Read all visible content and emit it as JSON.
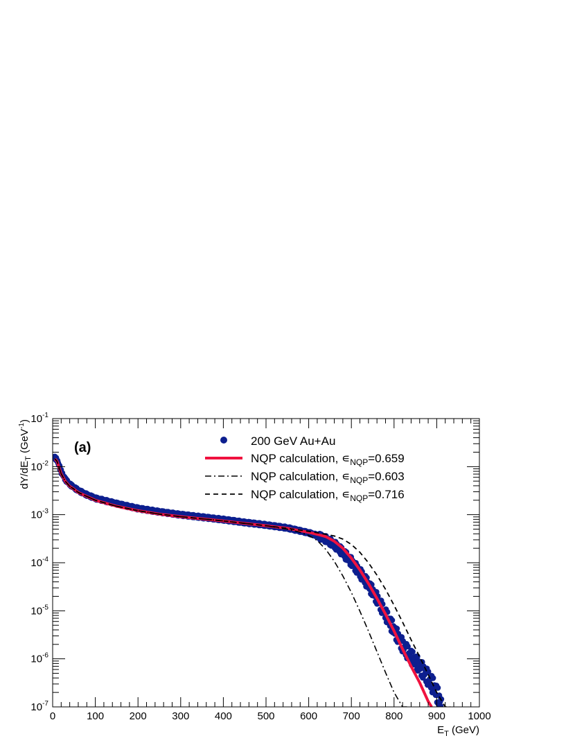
{
  "chart_data": {
    "type": "line",
    "panel_label": "(a)",
    "xlabel_main": "E",
    "xlabel_sub": "T",
    "xlabel_unit": " (GeV)",
    "ylabel_main": "dY/dE",
    "ylabel_sub": "T",
    "ylabel_unit_pre": " (GeV",
    "ylabel_unit_sup": "-1",
    "ylabel_unit_post": ")",
    "xlim": [
      0,
      1000
    ],
    "ylim": [
      1e-07,
      0.1
    ],
    "yscale": "log",
    "x_ticks": [
      0,
      100,
      200,
      300,
      400,
      500,
      600,
      700,
      800,
      900,
      1000
    ],
    "x_tick_labels": [
      "0",
      "100",
      "200",
      "300",
      "400",
      "500",
      "600",
      "700",
      "800",
      "900",
      "1000"
    ],
    "y_tick_exponents": [
      -7,
      -6,
      -5,
      -4,
      -3,
      -2,
      -1
    ],
    "y_tick_base": "10",
    "grid": false,
    "legend_position": "top-right",
    "series": [
      {
        "name": "200 GeV Au+Au",
        "style": "markers",
        "color": "#0d1f8f",
        "x": [
          5,
          10,
          15,
          20,
          30,
          40,
          50,
          60,
          80,
          100,
          150,
          200,
          250,
          300,
          350,
          400,
          450,
          500,
          550,
          600,
          620,
          640,
          660,
          680,
          700,
          720,
          740,
          760,
          780,
          800,
          820,
          840,
          860,
          880,
          895,
          905,
          912
        ],
        "y": [
          0.0155,
          0.0138,
          0.0108,
          0.0078,
          0.0054,
          0.0043,
          0.0037,
          0.0032,
          0.0026,
          0.0022,
          0.0017,
          0.00135,
          0.00115,
          0.001,
          0.00089,
          0.00079,
          0.00069,
          0.00061,
          0.00053,
          0.00042,
          0.00037,
          0.00031,
          0.00024,
          0.000165,
          0.000105,
          6.2e-05,
          3.5e-05,
          1.8e-05,
          8.5e-06,
          4e-06,
          1.9e-06,
          1.1e-06,
          7e-07,
          4e-07,
          2.5e-07,
          1.5e-07,
          1e-07
        ]
      },
      {
        "name": "NQP calculation, ",
        "eps_symbol": "∊",
        "eps_sub": "NQP",
        "eps_value": "=0.659",
        "style": "solid",
        "color": "#f0123f",
        "x": [
          5,
          10,
          15,
          20,
          30,
          40,
          50,
          60,
          80,
          100,
          150,
          200,
          250,
          300,
          350,
          400,
          450,
          500,
          550,
          600,
          620,
          640,
          660,
          680,
          700,
          720,
          740,
          760,
          780,
          800,
          820,
          840,
          860,
          880,
          888
        ],
        "y": [
          0.0145,
          0.013,
          0.0097,
          0.0071,
          0.0049,
          0.0039,
          0.0034,
          0.0029,
          0.0024,
          0.002,
          0.0015,
          0.00121,
          0.00103,
          0.00091,
          0.00082,
          0.00074,
          0.00066,
          0.00059,
          0.00052,
          0.00043,
          0.00039,
          0.00035,
          0.00028,
          0.0002,
          0.000125,
          7.1e-05,
          3.7e-05,
          1.8e-05,
          8.5e-06,
          3.8e-06,
          1.6e-06,
          7e-07,
          3.2e-07,
          1.3e-07,
          1e-07
        ]
      },
      {
        "name": "NQP calculation, ",
        "eps_symbol": "∊",
        "eps_sub": "NQP",
        "eps_value": "=0.603",
        "style": "dashdot",
        "color": "#000000",
        "x": [
          5,
          10,
          15,
          20,
          30,
          40,
          50,
          60,
          80,
          100,
          150,
          200,
          250,
          300,
          350,
          400,
          450,
          500,
          550,
          580,
          600,
          620,
          640,
          660,
          680,
          700,
          720,
          740,
          760,
          780,
          800,
          820,
          836
        ],
        "y": [
          0.0145,
          0.013,
          0.0097,
          0.0071,
          0.0049,
          0.0039,
          0.0034,
          0.0029,
          0.0024,
          0.002,
          0.0015,
          0.00121,
          0.00103,
          0.00091,
          0.00082,
          0.00074,
          0.00066,
          0.00059,
          0.0005,
          0.00043,
          0.00037,
          0.00029,
          0.00019,
          0.000107,
          5.3e-05,
          2.4e-05,
          9.8e-06,
          3.8e-06,
          1.4e-06,
          5.2e-07,
          2e-07,
          1e-07,
          1e-07
        ]
      },
      {
        "name": "NQP calculation, ",
        "eps_symbol": "∊",
        "eps_sub": "NQP",
        "eps_value": "=0.716",
        "style": "dashed",
        "color": "#000000",
        "x": [
          5,
          10,
          15,
          20,
          30,
          40,
          50,
          60,
          80,
          100,
          150,
          200,
          250,
          300,
          350,
          400,
          450,
          500,
          550,
          600,
          620,
          640,
          660,
          680,
          700,
          720,
          740,
          760,
          780,
          800,
          820,
          840,
          860,
          880,
          900,
          920,
          932
        ],
        "y": [
          0.0145,
          0.013,
          0.0097,
          0.0071,
          0.0049,
          0.0039,
          0.0034,
          0.0029,
          0.0024,
          0.002,
          0.0015,
          0.00121,
          0.00103,
          0.00091,
          0.00082,
          0.00074,
          0.00066,
          0.00059,
          0.00052,
          0.00045,
          0.00042,
          0.00039,
          0.00036,
          0.00031,
          0.00024,
          0.000165,
          0.0001,
          5.5e-05,
          2.8e-05,
          1.3e-05,
          5.8e-06,
          2.5e-06,
          1.1e-06,
          4.7e-07,
          2e-07,
          1e-07,
          1e-07
        ]
      }
    ]
  }
}
